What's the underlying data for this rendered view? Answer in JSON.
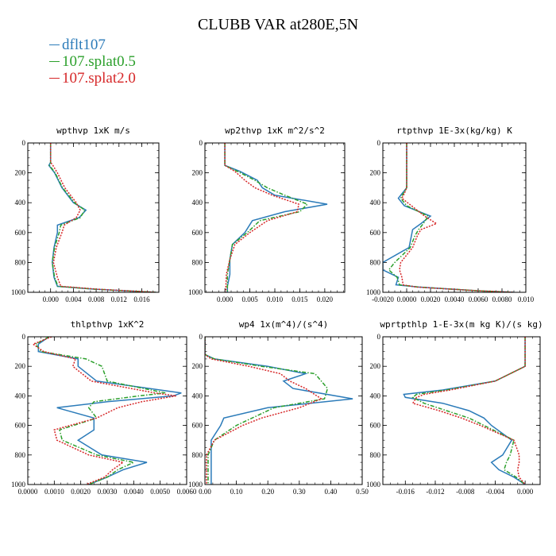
{
  "title": "CLUBB VAR at280E,5N",
  "legend": [
    {
      "label": "dflt107",
      "color": "#2b7bb9",
      "dash": "solid"
    },
    {
      "label": "107.splat0.5",
      "color": "#2ca02c",
      "dash": "dashdot"
    },
    {
      "label": "107.splat2.0",
      "color": "#d62728",
      "dash": "dotted"
    }
  ],
  "chart_data": [
    {
      "type": "line",
      "title": "wpthvp  1xK m/s",
      "xlim": [
        -0.004,
        0.019
      ],
      "ylim": [
        1000,
        0
      ],
      "xticks": [
        0.0,
        0.004,
        0.008,
        0.012,
        0.016
      ],
      "xticklabels": [
        "0.000",
        "0.004",
        "0.008",
        "0.012",
        "0.016"
      ],
      "yticks": [
        0,
        200,
        400,
        600,
        800,
        1000
      ],
      "yticklabels": [
        "0",
        "200",
        "400",
        "600",
        "800",
        "1000"
      ],
      "y": [
        0,
        130,
        150,
        200,
        300,
        400,
        450,
        500,
        550,
        600,
        700,
        800,
        900,
        960,
        980,
        1000
      ],
      "series": [
        {
          "name": "dflt107",
          "values": [
            0.0,
            0.0,
            -0.0003,
            0.0007,
            0.002,
            0.004,
            0.0062,
            0.005,
            0.0012,
            0.0012,
            0.0006,
            0.0003,
            0.0006,
            0.0012,
            0.008,
            0.0185
          ]
        },
        {
          "name": "107.splat0.5",
          "values": [
            0.0,
            0.0,
            -0.0002,
            0.0008,
            0.0021,
            0.0042,
            0.006,
            0.0052,
            0.0018,
            0.0015,
            0.0007,
            0.0003,
            0.0007,
            0.0013,
            0.008,
            0.0185
          ]
        },
        {
          "name": "107.splat2.0",
          "values": [
            0.0,
            0.0,
            0.0004,
            0.0012,
            0.0025,
            0.0045,
            0.0052,
            0.0045,
            0.0024,
            0.002,
            0.001,
            0.0005,
            0.0012,
            0.0018,
            0.0085,
            0.0185
          ]
        }
      ]
    },
    {
      "type": "line",
      "title": "wp2thvp  1xK m^2/s^2",
      "xlim": [
        -0.004,
        0.024
      ],
      "ylim": [
        1000,
        0
      ],
      "xticks": [
        0.0,
        0.005,
        0.01,
        0.015,
        0.02
      ],
      "xticklabels": [
        "0.000",
        "0.005",
        "0.010",
        "0.015",
        "0.020"
      ],
      "yticks": [
        0,
        200,
        400,
        600,
        800,
        1000
      ],
      "yticklabels": [
        "0",
        "200",
        "400",
        "600",
        "800",
        "1000"
      ],
      "y": [
        0,
        150,
        190,
        250,
        300,
        350,
        410,
        460,
        520,
        600,
        680,
        780,
        880,
        960,
        1000
      ],
      "series": [
        {
          "name": "dflt107",
          "values": [
            0.0,
            0.0,
            0.003,
            0.0065,
            0.0075,
            0.01,
            0.0205,
            0.012,
            0.0055,
            0.004,
            0.0015,
            0.001,
            0.001,
            0.0005,
            0.0005
          ]
        },
        {
          "name": "107.splat0.5",
          "values": [
            0.0,
            0.0,
            0.0025,
            0.006,
            0.0085,
            0.012,
            0.0165,
            0.015,
            0.007,
            0.0045,
            0.0015,
            0.001,
            0.0005,
            0.0005,
            0.0005
          ]
        },
        {
          "name": "107.splat2.0",
          "values": [
            0.0,
            0.0,
            0.002,
            0.004,
            0.006,
            0.0095,
            0.0148,
            0.0145,
            0.0085,
            0.005,
            0.002,
            0.001,
            0.0003,
            0.0002,
            0.0002
          ]
        }
      ]
    },
    {
      "type": "line",
      "title": "rtpthvp  1E-3x(kg/kg) K",
      "xlim": [
        -0.002,
        0.01
      ],
      "ylim": [
        1000,
        0
      ],
      "xticks": [
        -0.002,
        0.0,
        0.002,
        0.004,
        0.006,
        0.008,
        0.01
      ],
      "xticklabels": [
        "-0.0020",
        "0.0000",
        "0.0020",
        "0.0040",
        "0.0060",
        "0.0080",
        "0.010"
      ],
      "yticks": [
        0,
        200,
        400,
        600,
        800,
        1000
      ],
      "yticklabels": [
        "0",
        "200",
        "400",
        "600",
        "800",
        "1000"
      ],
      "y": [
        0,
        300,
        340,
        370,
        420,
        490,
        540,
        580,
        620,
        700,
        800,
        850,
        900,
        950,
        965,
        990,
        1000
      ],
      "series": [
        {
          "name": "dflt107",
          "values": [
            0.0,
            0.0,
            -0.0004,
            -0.0007,
            -0.0002,
            0.002,
            0.0012,
            0.0005,
            0.0004,
            0.0002,
            -0.002,
            -0.002,
            -0.0007,
            -0.0009,
            0.001,
            0.006,
            0.009
          ]
        },
        {
          "name": "107.splat0.5",
          "values": [
            0.0,
            0.0,
            -0.0003,
            -0.0005,
            0.0,
            0.0018,
            0.0014,
            0.001,
            0.0007,
            0.0003,
            -0.001,
            -0.0015,
            -0.0008,
            -0.0006,
            0.001,
            0.006,
            0.009
          ]
        },
        {
          "name": "107.splat2.0",
          "values": [
            0.0,
            0.0,
            -0.0002,
            -0.0004,
            0.0004,
            0.0015,
            0.0025,
            0.0012,
            0.0009,
            0.0005,
            -0.0005,
            -0.0006,
            -0.0004,
            -0.0003,
            0.0008,
            0.006,
            0.009
          ]
        }
      ]
    },
    {
      "type": "line",
      "title": "thlpthvp  1xK^2",
      "xlim": [
        0.0,
        0.006
      ],
      "ylim": [
        1000,
        0
      ],
      "xticks": [
        0.0,
        0.001,
        0.002,
        0.003,
        0.004,
        0.005,
        0.006
      ],
      "xticklabels": [
        "0.0000",
        "0.0010",
        "0.0020",
        "0.0030",
        "0.0040",
        "0.0050",
        "0.0060"
      ],
      "yticks": [
        0,
        200,
        400,
        600,
        800,
        1000
      ],
      "yticklabels": [
        "0",
        "200",
        "400",
        "600",
        "800",
        "1000"
      ],
      "y": [
        0,
        50,
        100,
        150,
        200,
        300,
        380,
        400,
        440,
        480,
        550,
        630,
        700,
        800,
        850,
        900,
        950,
        1000
      ],
      "series": [
        {
          "name": "dflt107",
          "values": [
            0.0008,
            0.0004,
            0.0004,
            0.0019,
            0.0019,
            0.0026,
            0.0058,
            0.0055,
            0.003,
            0.0011,
            0.0025,
            0.0025,
            0.0019,
            0.0028,
            0.0045,
            0.0036,
            0.003,
            0.0023
          ]
        },
        {
          "name": "107.splat0.5",
          "values": [
            0.0008,
            0.0003,
            0.0005,
            0.0022,
            0.0028,
            0.003,
            0.0052,
            0.0042,
            0.0025,
            0.0023,
            0.0026,
            0.0012,
            0.0013,
            0.0026,
            0.004,
            0.0034,
            0.003,
            0.0023
          ]
        },
        {
          "name": "107.splat2.0",
          "values": [
            0.0009,
            0.0002,
            0.0006,
            0.0018,
            0.0017,
            0.0024,
            0.0048,
            0.0056,
            0.0043,
            0.0034,
            0.0026,
            0.001,
            0.0011,
            0.0023,
            0.0036,
            0.0032,
            0.0029,
            0.0022
          ]
        }
      ]
    },
    {
      "type": "line",
      "title": "wp4  1x(m^4)/(s^4)",
      "xlim": [
        0.0,
        0.5
      ],
      "ylim": [
        1000,
        0
      ],
      "xticks": [
        0.0,
        0.1,
        0.2,
        0.3,
        0.4,
        0.5
      ],
      "xticklabels": [
        "0.00",
        "0.10",
        "0.20",
        "0.30",
        "0.40",
        "0.50"
      ],
      "yticks": [
        0,
        200,
        400,
        600,
        800,
        1000
      ],
      "yticklabels": [
        "0",
        "200",
        "400",
        "600",
        "800",
        "1000"
      ],
      "y": [
        0,
        120,
        150,
        200,
        250,
        300,
        350,
        420,
        480,
        550,
        600,
        700,
        800,
        900,
        1000
      ],
      "series": [
        {
          "name": "dflt107",
          "values": [
            0.0,
            0.0,
            0.03,
            0.2,
            0.32,
            0.25,
            0.28,
            0.47,
            0.2,
            0.06,
            0.05,
            0.02,
            0.02,
            0.02,
            0.02
          ]
        },
        {
          "name": "107.splat0.5",
          "values": [
            0.0,
            0.0,
            0.03,
            0.18,
            0.35,
            0.37,
            0.39,
            0.38,
            0.22,
            0.15,
            0.1,
            0.03,
            0.01,
            0.01,
            0.01
          ]
        },
        {
          "name": "107.splat2.0",
          "values": [
            0.0,
            0.0,
            0.02,
            0.14,
            0.24,
            0.27,
            0.32,
            0.37,
            0.3,
            0.18,
            0.12,
            0.03,
            0.005,
            0.005,
            0.005
          ]
        }
      ]
    },
    {
      "type": "line",
      "title": "wprtpthlp  1-E-3x(m kg K)/(s kg)",
      "xlim": [
        -0.019,
        0.002
      ],
      "ylim": [
        1000,
        0
      ],
      "xticks": [
        -0.016,
        -0.012,
        -0.008,
        -0.004,
        0.0
      ],
      "xticklabels": [
        "-0.016",
        "-0.012",
        "-0.008",
        "-0.004",
        "0.000"
      ],
      "yticks": [
        0,
        200,
        400,
        600,
        800,
        1000
      ],
      "yticklabels": [
        "0",
        "200",
        "400",
        "600",
        "800",
        "1000"
      ],
      "y": [
        0,
        200,
        300,
        360,
        390,
        410,
        450,
        500,
        550,
        600,
        700,
        800,
        850,
        900,
        950,
        1000
      ],
      "series": [
        {
          "name": "dflt107",
          "values": [
            0.0,
            0.0,
            -0.004,
            -0.011,
            -0.0162,
            -0.016,
            -0.011,
            -0.0075,
            -0.0055,
            -0.0045,
            -0.0018,
            -0.003,
            -0.0045,
            -0.0035,
            -0.0015,
            0.0
          ]
        },
        {
          "name": "107.splat0.5",
          "values": [
            0.0,
            0.0,
            -0.004,
            -0.0105,
            -0.0145,
            -0.015,
            -0.0135,
            -0.0105,
            -0.0075,
            -0.0055,
            -0.0015,
            -0.002,
            -0.0025,
            -0.0028,
            -0.0012,
            0.0
          ]
        },
        {
          "name": "107.splat2.0",
          "values": [
            0.0,
            0.0,
            -0.004,
            -0.01,
            -0.0135,
            -0.0145,
            -0.015,
            -0.0115,
            -0.0085,
            -0.006,
            -0.0015,
            -0.0008,
            -0.0008,
            -0.001,
            -0.0008,
            0.0
          ]
        }
      ]
    }
  ]
}
